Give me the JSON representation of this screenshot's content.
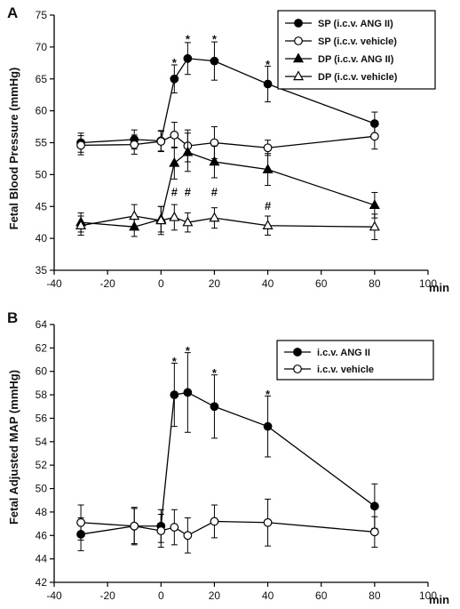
{
  "chart_data": [
    {
      "type": "line",
      "panel_label": "A",
      "xlabel": "min",
      "ylabel": "Fetal Blood Pressure (mmHg)",
      "xlim": [
        -40,
        100
      ],
      "ylim": [
        35,
        75
      ],
      "xticks": [
        -40,
        -20,
        0,
        20,
        40,
        60,
        80,
        100
      ],
      "yticks": [
        35,
        40,
        45,
        50,
        55,
        60,
        65,
        70,
        75
      ],
      "x": [
        -30,
        -10,
        0,
        5,
        10,
        20,
        40,
        80
      ],
      "legend_position": "top-right",
      "series": [
        {
          "name": "SP (i.c.v. ANG II)",
          "marker": "circle-filled",
          "values": [
            55.0,
            55.5,
            55.3,
            65.0,
            68.2,
            67.8,
            64.2,
            58.0
          ],
          "errors": [
            1.5,
            1.5,
            1.6,
            2.2,
            2.5,
            3.0,
            2.8,
            1.8
          ]
        },
        {
          "name": "SP (i.c.v. vehicle)",
          "marker": "circle-open",
          "values": [
            54.6,
            54.7,
            55.2,
            56.2,
            54.5,
            55.0,
            54.2,
            56.0
          ],
          "errors": [
            1.5,
            1.5,
            1.6,
            2.0,
            2.5,
            2.5,
            1.2,
            2.0
          ]
        },
        {
          "name": "DP (i.c.v. ANG II)",
          "marker": "triangle-filled",
          "values": [
            42.5,
            41.8,
            43.0,
            51.8,
            53.5,
            52.0,
            50.8,
            45.2
          ],
          "errors": [
            1.5,
            1.5,
            2.0,
            2.5,
            3.0,
            2.5,
            2.5,
            2.0
          ]
        },
        {
          "name": "DP (i.c.v. vehicle)",
          "marker": "triangle-open",
          "values": [
            42.0,
            43.5,
            42.8,
            43.3,
            42.5,
            43.2,
            42.0,
            41.8
          ],
          "errors": [
            1.5,
            1.8,
            2.2,
            2.0,
            1.5,
            1.6,
            1.5,
            2.0
          ]
        }
      ],
      "annotations": [
        {
          "text": "*",
          "x": 5,
          "y": 67.6
        },
        {
          "text": "*",
          "x": 10,
          "y": 71.3
        },
        {
          "text": "*",
          "x": 20,
          "y": 71.3
        },
        {
          "text": "*",
          "x": 40,
          "y": 67.3
        },
        {
          "text": "#",
          "x": 5,
          "y": 47.3
        },
        {
          "text": "#",
          "x": 10,
          "y": 47.3
        },
        {
          "text": "#",
          "x": 20,
          "y": 47.3
        },
        {
          "text": "#",
          "x": 40,
          "y": 45.2
        }
      ]
    },
    {
      "type": "line",
      "panel_label": "B",
      "xlabel": "min",
      "ylabel": "Fetal Adjusted MAP (mmHg)",
      "xlim": [
        -40,
        100
      ],
      "ylim": [
        42,
        64
      ],
      "xticks": [
        -40,
        -20,
        0,
        20,
        40,
        60,
        80,
        100
      ],
      "yticks": [
        42,
        44,
        46,
        48,
        50,
        52,
        54,
        56,
        58,
        60,
        62,
        64
      ],
      "x": [
        -30,
        -10,
        0,
        5,
        10,
        20,
        40,
        80
      ],
      "legend_position": "top-right",
      "series": [
        {
          "name": "i.c.v. ANG II",
          "marker": "circle-filled",
          "values": [
            46.1,
            46.8,
            46.8,
            58.0,
            58.2,
            57.0,
            55.3,
            48.5
          ],
          "errors": [
            1.4,
            1.5,
            1.4,
            2.7,
            3.4,
            2.7,
            2.6,
            1.9
          ]
        },
        {
          "name": "i.c.v. vehicle",
          "marker": "circle-open",
          "values": [
            47.1,
            46.8,
            46.4,
            46.7,
            46.0,
            47.2,
            47.1,
            46.3
          ],
          "errors": [
            1.5,
            1.6,
            1.4,
            1.5,
            1.5,
            1.4,
            2.0,
            1.3
          ]
        }
      ],
      "annotations": [
        {
          "text": "*",
          "x": 5,
          "y": 60.9
        },
        {
          "text": "*",
          "x": 10,
          "y": 61.8
        },
        {
          "text": "*",
          "x": 20,
          "y": 59.9
        },
        {
          "text": "*",
          "x": 40,
          "y": 58.1
        }
      ]
    }
  ]
}
